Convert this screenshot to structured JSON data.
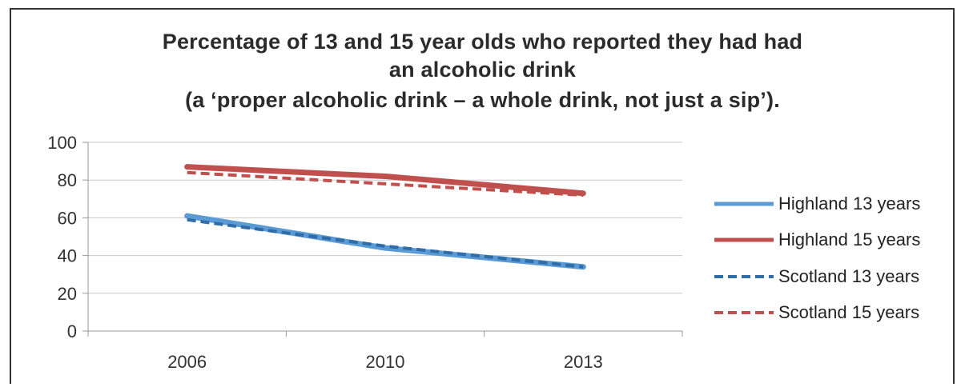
{
  "chart_data": {
    "type": "line",
    "title_lines": [
      "Percentage of 13 and 15 year olds who reported they had had",
      "an alcoholic drink",
      "(a ‘proper alcoholic drink – a whole drink, not just a sip’)."
    ],
    "categories": [
      "2006",
      "2010",
      "2013"
    ],
    "ylim": [
      0,
      100
    ],
    "yticks": [
      0,
      20,
      40,
      60,
      80,
      100
    ],
    "grid": true,
    "legend_position": "right",
    "series": [
      {
        "name": "Highland 13 years",
        "values": [
          61,
          44,
          34
        ],
        "color": "#5b9bd5",
        "style": "solid"
      },
      {
        "name": "Highland 15 years",
        "values": [
          87,
          82,
          73
        ],
        "color": "#c0504d",
        "style": "solid"
      },
      {
        "name": "Scotland 13 years",
        "values": [
          59,
          45,
          34
        ],
        "color": "#2f6ca8",
        "style": "dashed"
      },
      {
        "name": "Scotland 15 years",
        "values": [
          84,
          78,
          72
        ],
        "color": "#c0504d",
        "style": "dashed"
      }
    ]
  }
}
